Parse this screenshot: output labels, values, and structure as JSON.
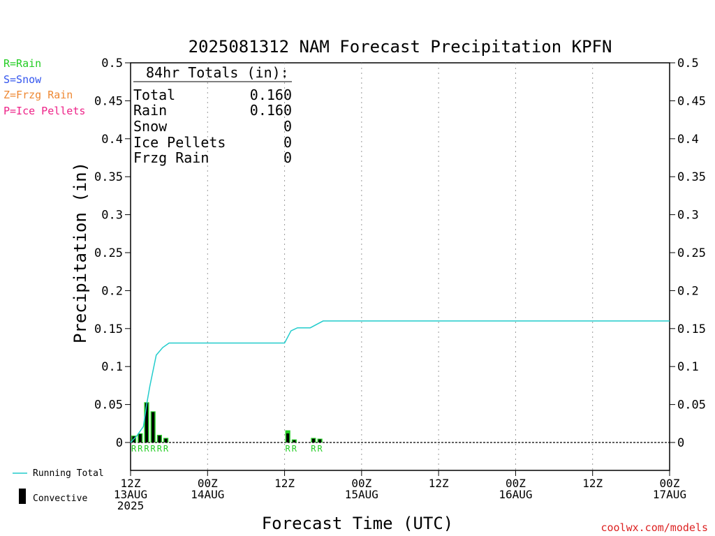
{
  "title": "2025081312 NAM Forecast Precipitation KPFN",
  "legend_ptype": [
    {
      "text": "R=Rain",
      "color": "#22cc22"
    },
    {
      "text": "S=Snow",
      "color": "#3355ee"
    },
    {
      "text": "Z=Frzg Rain",
      "color": "#ee8833"
    },
    {
      "text": "P=Ice Pellets",
      "color": "#ee2288"
    }
  ],
  "legend_lines": {
    "running_total": "Running Total",
    "convective": "Convective"
  },
  "totals": {
    "heading": "84hr Totals (in):",
    "rows": [
      {
        "label": "Total",
        "value": "0.160"
      },
      {
        "label": "Rain",
        "value": "0.160"
      },
      {
        "label": "Snow",
        "value": "0"
      },
      {
        "label": "Ice Pellets",
        "value": "0"
      },
      {
        "label": "Frzg Rain",
        "value": "0"
      }
    ]
  },
  "credit": "coolwx.com/models",
  "colors": {
    "precip_bar": "#22cc22",
    "convective_bar": "#000000",
    "running_total": "#22cccc",
    "ptype_rain": "#22cc22",
    "credit": "#dd2222"
  },
  "chart_data": {
    "type": "bar",
    "title": "2025081312 NAM Forecast Precipitation KPFN",
    "xlabel": "Forecast Time (UTC)",
    "ylabel": "Precipitation (in)",
    "ylim": [
      0,
      0.5
    ],
    "xlim_hours": [
      0,
      84
    ],
    "yticks": [
      "0",
      "0.05",
      "0.1",
      "0.15",
      "0.2",
      "0.25",
      "0.3",
      "0.35",
      "0.4",
      "0.45",
      "0.5"
    ],
    "xticks": [
      {
        "hour": 0,
        "lines": [
          "12Z",
          "13AUG",
          "2025"
        ]
      },
      {
        "hour": 12,
        "lines": [
          "00Z",
          "14AUG"
        ]
      },
      {
        "hour": 24,
        "lines": [
          "12Z"
        ]
      },
      {
        "hour": 36,
        "lines": [
          "00Z",
          "15AUG"
        ]
      },
      {
        "hour": 48,
        "lines": [
          "12Z"
        ]
      },
      {
        "hour": 60,
        "lines": [
          "00Z",
          "16AUG"
        ]
      },
      {
        "hour": 72,
        "lines": [
          "12Z"
        ]
      },
      {
        "hour": 84,
        "lines": [
          "00Z",
          "17AUG"
        ]
      }
    ],
    "grid": "dotted vertical at 12-hourly ticks",
    "series": [
      {
        "name": "Precipitation",
        "hours": [
          1,
          2,
          3,
          4,
          5,
          6,
          25,
          26,
          29,
          30
        ],
        "values": [
          0.009,
          0.012,
          0.053,
          0.041,
          0.01,
          0.006,
          0.016,
          0.004,
          0.006,
          0.005
        ],
        "ptype": [
          "R",
          "R",
          "R",
          "R",
          "R",
          "R",
          "R",
          "R",
          "R",
          "R"
        ]
      },
      {
        "name": "Convective",
        "hours": [
          1,
          2,
          3,
          4,
          5,
          6,
          25,
          26,
          29,
          30
        ],
        "values": [
          0.008,
          0.011,
          0.052,
          0.04,
          0.009,
          0.005,
          0.012,
          0.003,
          0.005,
          0.004
        ]
      },
      {
        "name": "Running Total",
        "hours": [
          0,
          1,
          2,
          2.5,
          3,
          4,
          5,
          6,
          24,
          25,
          26,
          28,
          30,
          84
        ],
        "values": [
          0,
          0.009,
          0.021,
          0.05,
          0.074,
          0.115,
          0.125,
          0.131,
          0.131,
          0.147,
          0.151,
          0.151,
          0.16,
          0.16
        ]
      }
    ]
  }
}
